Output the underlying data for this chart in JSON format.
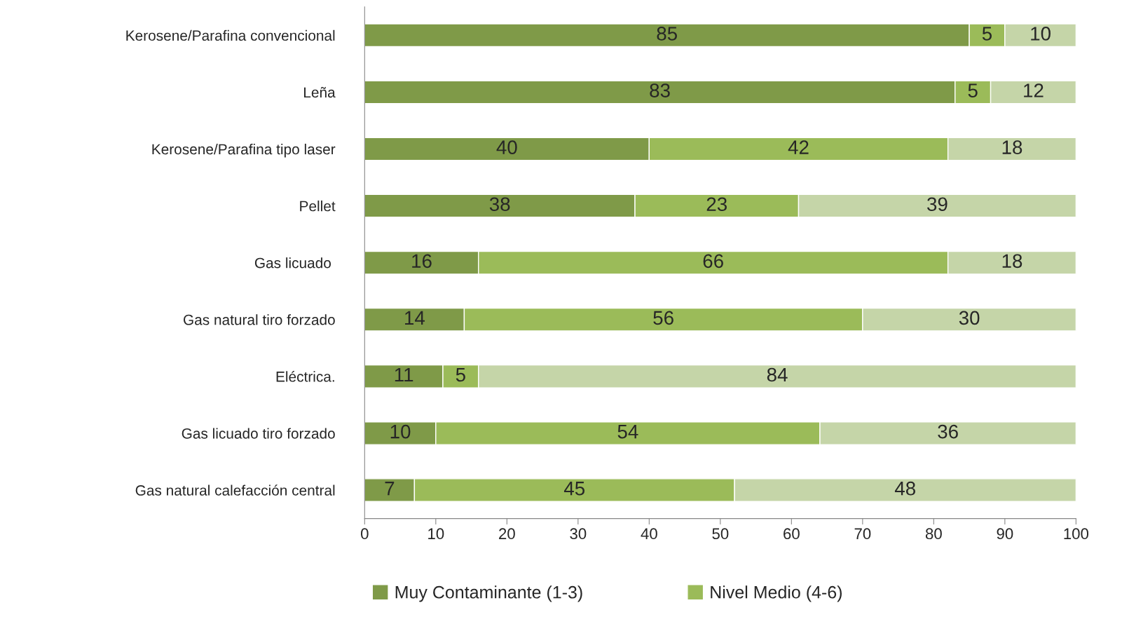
{
  "chart_data": {
    "type": "bar",
    "orientation": "horizontal",
    "stacked": true,
    "categories": [
      "Kerosene/Parafina convencional",
      "Leña",
      "Kerosene/Parafina tipo laser",
      "Pellet",
      "Gas licuado ",
      "Gas natural tiro forzado",
      "Eléctrica.",
      "Gas licuado tiro forzado",
      "Gas natural calefacción central"
    ],
    "series": [
      {
        "name": "Muy Contaminante (1-3)",
        "color": "#7f9a48",
        "values": [
          85,
          83,
          40,
          38,
          16,
          14,
          11,
          10,
          7
        ]
      },
      {
        "name": "Nivel Medio (4-6)",
        "color": "#9bbb59",
        "values": [
          5,
          5,
          42,
          23,
          66,
          56,
          5,
          54,
          45
        ]
      },
      {
        "color": "#c5d5a8",
        "values": [
          10,
          12,
          18,
          39,
          18,
          30,
          84,
          36,
          48
        ]
      }
    ],
    "xlim": [
      0,
      100
    ],
    "xticks": [
      0,
      10,
      20,
      30,
      40,
      50,
      60,
      70,
      80,
      90,
      100
    ],
    "data_labels": true,
    "legend": "bottom",
    "grid": false
  }
}
